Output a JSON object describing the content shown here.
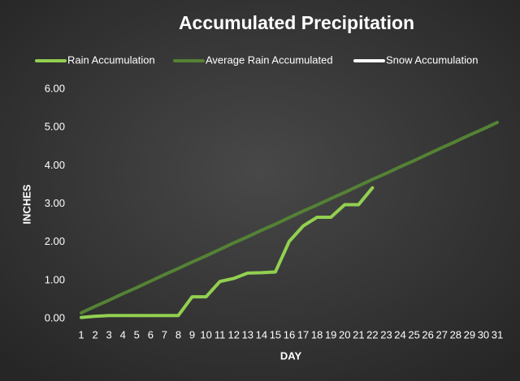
{
  "chart_data": {
    "type": "line",
    "title": "Accumulated Precipitation",
    "xlabel": "DAY",
    "ylabel": "INCHES",
    "categories": [
      "1",
      "2",
      "3",
      "4",
      "5",
      "6",
      "7",
      "8",
      "9",
      "10",
      "11",
      "12",
      "13",
      "14",
      "15",
      "16",
      "17",
      "18",
      "19",
      "20",
      "21",
      "22",
      "23",
      "24",
      "25",
      "26",
      "27",
      "28",
      "29",
      "30",
      "31"
    ],
    "series": [
      {
        "name": "Rain Accumulation",
        "color": "#92d050",
        "values": [
          0.03,
          0.06,
          0.08,
          0.08,
          0.08,
          0.08,
          0.08,
          0.08,
          0.57,
          0.57,
          0.97,
          1.05,
          1.19,
          1.2,
          1.22,
          2.02,
          2.42,
          2.65,
          2.65,
          2.98,
          2.98,
          3.42,
          null,
          null,
          null,
          null,
          null,
          null,
          null,
          null,
          null
        ]
      },
      {
        "name": "Average Rain Accumulated",
        "color": "#548235",
        "values": [
          0.15,
          0.32,
          0.48,
          0.65,
          0.81,
          0.98,
          1.15,
          1.31,
          1.48,
          1.64,
          1.81,
          1.98,
          2.14,
          2.31,
          2.47,
          2.64,
          2.81,
          2.97,
          3.14,
          3.3,
          3.47,
          3.64,
          3.8,
          3.97,
          4.13,
          4.3,
          4.47,
          4.63,
          4.8,
          4.96,
          5.13
        ]
      },
      {
        "name": "Snow Accumulation",
        "color": "#ffffff",
        "values": [
          null,
          null,
          null,
          null,
          null,
          null,
          null,
          null,
          null,
          null,
          null,
          null,
          null,
          null,
          null,
          null,
          null,
          null,
          null,
          null,
          null,
          null,
          null,
          null,
          null,
          null,
          null,
          null,
          null,
          null,
          null
        ]
      }
    ],
    "ylim": [
      0,
      6
    ],
    "yticks": [
      {
        "value": 0,
        "label": "0.00"
      },
      {
        "value": 1,
        "label": "1.00"
      },
      {
        "value": 2,
        "label": "2.00"
      },
      {
        "value": 3,
        "label": "3.00"
      },
      {
        "value": 4,
        "label": "4.00"
      },
      {
        "value": 5,
        "label": "5.00"
      },
      {
        "value": 6,
        "label": "6.00"
      }
    ],
    "grid": false,
    "legend": "top"
  }
}
